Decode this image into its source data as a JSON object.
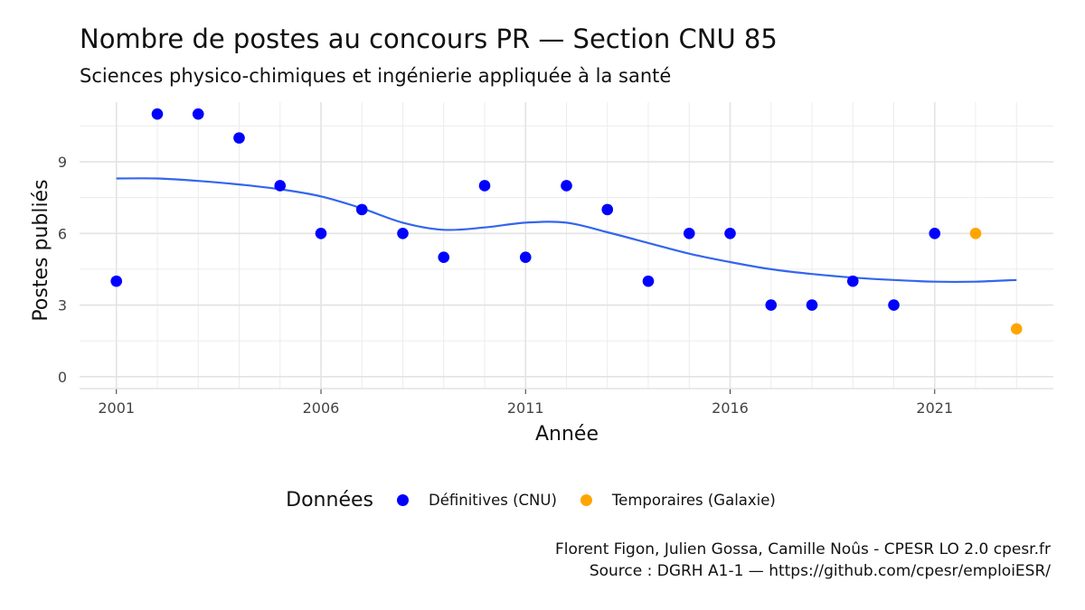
{
  "chart_data": {
    "type": "scatter",
    "title": "Nombre de postes au concours PR  —  Section CNU 85",
    "subtitle": "Sciences physico-chimiques et ingénierie appliquée à la santé",
    "xlabel": "Année",
    "ylabel": "Postes publiés",
    "xlim": [
      2000.1,
      2023.9
    ],
    "ylim": [
      -0.5,
      11.5
    ],
    "x_ticks": [
      2001,
      2006,
      2011,
      2016,
      2021
    ],
    "y_ticks": [
      0,
      3,
      6,
      9
    ],
    "grid": true,
    "legend_position": "bottom",
    "legend_title": "Données",
    "series": [
      {
        "name": "Définitives (CNU)",
        "color": "#0000ff",
        "x": [
          2001,
          2002,
          2003,
          2004,
          2005,
          2006,
          2007,
          2008,
          2009,
          2010,
          2011,
          2012,
          2013,
          2014,
          2015,
          2016,
          2017,
          2018,
          2019,
          2020,
          2021
        ],
        "y": [
          4,
          11,
          11,
          10,
          8,
          6,
          7,
          6,
          5,
          8,
          5,
          8,
          7,
          4,
          6,
          6,
          3,
          3,
          4,
          3,
          6
        ]
      },
      {
        "name": "Temporaires (Galaxie)",
        "color": "#ffa500",
        "x": [
          2022,
          2023
        ],
        "y": [
          6,
          2
        ]
      }
    ],
    "smooth": {
      "color": "#3366ee",
      "x": [
        2001,
        2002,
        2003,
        2004,
        2005,
        2006,
        2007,
        2008,
        2009,
        2010,
        2011,
        2012,
        2013,
        2014,
        2015,
        2016,
        2017,
        2018,
        2019,
        2020,
        2021,
        2022,
        2023
      ],
      "y": [
        8.3,
        8.3,
        8.2,
        8.05,
        7.85,
        7.55,
        7.05,
        6.45,
        6.15,
        6.25,
        6.45,
        6.45,
        6.05,
        5.6,
        5.15,
        4.8,
        4.5,
        4.3,
        4.15,
        4.05,
        3.98,
        3.98,
        4.05
      ]
    }
  },
  "caption": {
    "line1": "Florent Figon, Julien Gossa, Camille Noûs - CPESR LO 2.0 cpesr.fr",
    "line2": "Source : DGRH A1-1 — https://github.com/cpesr/emploiESR/"
  }
}
